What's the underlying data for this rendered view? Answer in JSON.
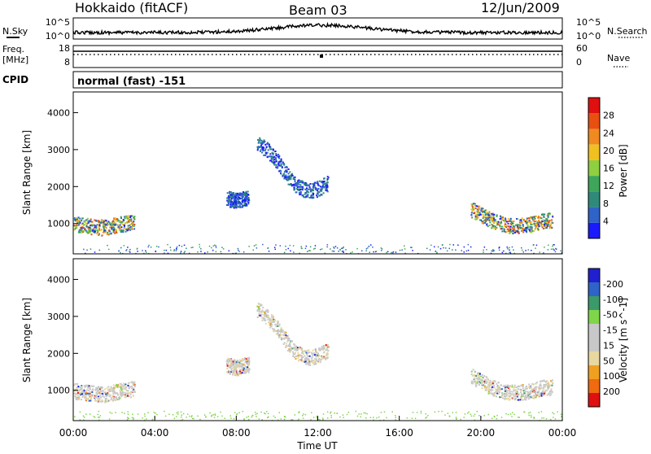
{
  "header": {
    "station": "Hokkaido (fitACF)",
    "beam": "Beam 03",
    "date": "12/Jun/2009"
  },
  "noise_panel": {
    "left_label": "N.Sky",
    "right_label": "N.Search",
    "left_ticks": [
      "10^5",
      "10^0"
    ],
    "right_ticks": [
      "10^5",
      "10^0"
    ]
  },
  "freq_panel": {
    "left_label": "Freq.",
    "left_unit": "[MHz]",
    "left_ticks": [
      "18",
      "8"
    ],
    "right_label": "Nave",
    "right_ticks": [
      "60",
      "0"
    ]
  },
  "cpid": {
    "label": "CPID",
    "value": "normal (fast) -151"
  },
  "colors": {
    "power_scale": [
      "#1a1aff",
      "#2f63c8",
      "#2f8a7a",
      "#3ea65a",
      "#8fd040",
      "#f0c020",
      "#f08a20",
      "#e84f10",
      "#e01010"
    ],
    "velocity_scale": [
      "#e01010",
      "#f06a10",
      "#f0a020",
      "#e8d8a0",
      "#c8c8c8",
      "#c8c8c8",
      "#7fd64a",
      "#3a9a6a",
      "#2f63c8",
      "#2020d0"
    ]
  },
  "chart_data": [
    {
      "type": "scatter",
      "title": "Power",
      "ylabel": "Slant Range [km]",
      "ylim": [
        180,
        4560
      ],
      "yticks": [
        "1000",
        "2000",
        "3000",
        "4000"
      ],
      "colorbar": {
        "label": "Power [dB]",
        "tick_labels": [
          "4",
          "8",
          "12",
          "16",
          "20",
          "24",
          "28"
        ]
      },
      "series": [
        {
          "x": [
            0.0,
            0.5,
            1.0,
            1.5,
            2.0,
            2.5,
            3.0
          ],
          "y": [
            1000,
            960,
            920,
            900,
            960,
            1010,
            1060
          ]
        },
        {
          "x": [
            7.5,
            7.8,
            8.0,
            8.3,
            8.6
          ],
          "y": [
            1700,
            1650,
            1620,
            1680,
            1720
          ]
        },
        {
          "x": [
            9.0,
            9.5,
            10.0,
            10.5,
            11.0,
            11.5,
            12.0,
            12.5
          ],
          "y": [
            3200,
            3000,
            2700,
            2300,
            2000,
            1900,
            1950,
            2100
          ]
        },
        {
          "x": [
            19.5,
            20.0,
            20.5,
            21.0,
            21.5,
            22.0,
            22.5,
            23.0,
            23.5
          ],
          "y": [
            1400,
            1250,
            1100,
            1000,
            950,
            960,
            1000,
            1080,
            1100
          ]
        }
      ]
    },
    {
      "type": "scatter",
      "title": "Velocity",
      "ylabel": "Slant Range [km]",
      "ylim": [
        180,
        4560
      ],
      "yticks": [
        "1000",
        "2000",
        "3000",
        "4000"
      ],
      "colorbar": {
        "label": "Velocity [m s^-1]",
        "tick_labels": [
          "200",
          "100",
          "50",
          "15",
          "-15",
          "-50",
          "-100",
          "-200"
        ]
      },
      "series": [
        {
          "x": [
            0.0,
            0.5,
            1.0,
            1.5,
            2.0,
            2.5,
            3.0
          ],
          "y": [
            1000,
            960,
            920,
            900,
            960,
            1010,
            1060
          ]
        },
        {
          "x": [
            7.5,
            7.8,
            8.0,
            8.3,
            8.6
          ],
          "y": [
            1700,
            1650,
            1620,
            1680,
            1720
          ]
        },
        {
          "x": [
            9.0,
            9.5,
            10.0,
            10.5,
            11.0,
            11.5,
            12.0,
            12.5
          ],
          "y": [
            3200,
            3000,
            2700,
            2300,
            2000,
            1900,
            1950,
            2100
          ]
        },
        {
          "x": [
            19.5,
            20.0,
            20.5,
            21.0,
            21.5,
            22.0,
            22.5,
            23.0,
            23.5
          ],
          "y": [
            1400,
            1250,
            1100,
            1000,
            950,
            960,
            1000,
            1080,
            1100
          ]
        }
      ]
    }
  ],
  "x_axis": {
    "label": "Time UT",
    "ticks": [
      "00:00",
      "04:00",
      "08:00",
      "12:00",
      "16:00",
      "20:00",
      "00:00"
    ]
  }
}
